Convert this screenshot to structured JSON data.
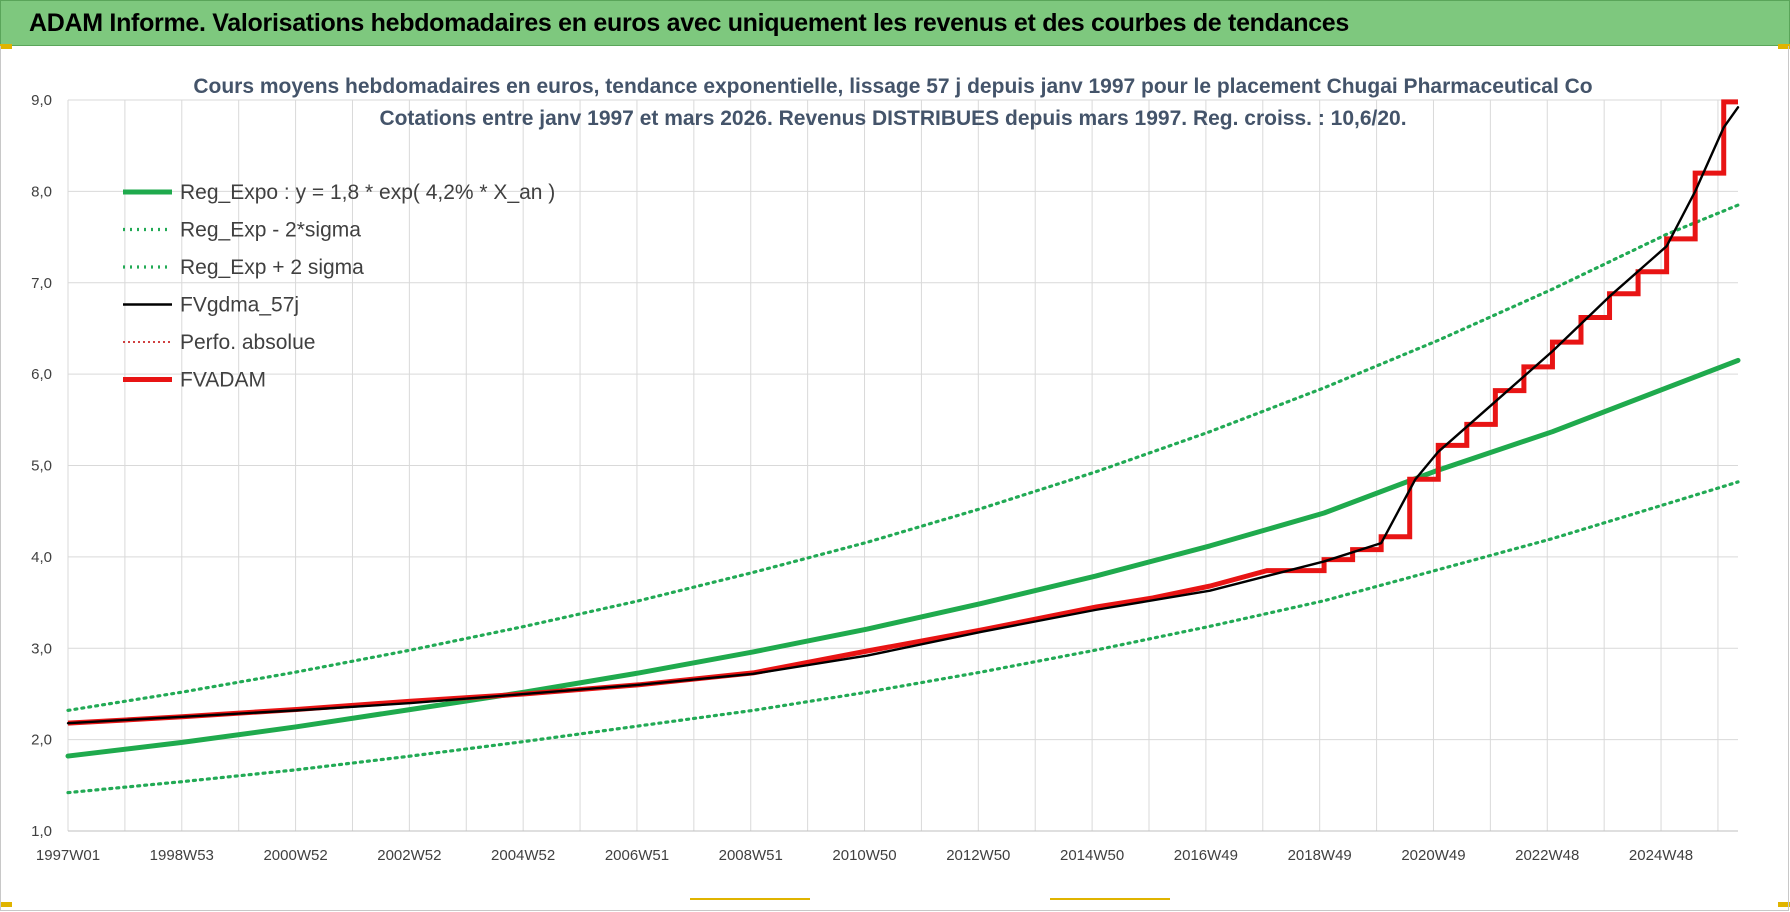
{
  "header": {
    "title": "ADAM Informe. Valorisations hebdomadaires en euros avec uniquement les revenus et des courbes de tendances"
  },
  "colors": {
    "header_bg": "#7ec87e",
    "trend_green": "#1faa4d",
    "sigma_green": "#22aa55",
    "fv_black": "#000000",
    "fvadam_red": "#e81414",
    "perf_red": "#c00000"
  },
  "chart_data": {
    "type": "line",
    "title": "Cours moyens hebdomadaires en euros, tendance exponentielle, lissage 57 j depuis janv 1997  pour le placement Chugai Pharmaceutical Co",
    "subtitle": "Cotations entre janv 1997 et mars 2026. Revenus DISTRIBUES depuis mars 1997. Reg. croiss. : 10,6/20.",
    "xlabel": "",
    "ylabel": "",
    "ylim": [
      1.0,
      9.0
    ],
    "xlim": [
      1997.0,
      2026.25
    ],
    "y_ticks": [
      "1,0",
      "2,0",
      "3,0",
      "4,0",
      "5,0",
      "6,0",
      "7,0",
      "8,0",
      "9,0"
    ],
    "x_tick_labels": [
      "1997W01",
      "1998W53",
      "2000W52",
      "2002W52",
      "2004W52",
      "2006W51",
      "2008W51",
      "2010W50",
      "2012W50",
      "2014W50",
      "2016W49",
      "2018W49",
      "2020W49",
      "2022W48",
      "2024W48"
    ],
    "grid": true,
    "legend_position": "top-left",
    "legend": [
      {
        "name": "Reg_Expo : y = 1,8 * exp( 4,2% *  X_an )",
        "style": "solid-thick",
        "color": "#1faa4d"
      },
      {
        "name": "Reg_Exp - 2*sigma",
        "style": "dotted",
        "color": "#22aa55"
      },
      {
        "name": "Reg_Exp + 2 sigma",
        "style": "dotted",
        "color": "#22aa55"
      },
      {
        "name": "FVgdma_57j",
        "style": "solid",
        "color": "#000000"
      },
      {
        "name": "Perfo. absolue",
        "style": "dotted-thin",
        "color": "#c00000"
      },
      {
        "name": "FVADAM",
        "style": "solid-thick",
        "color": "#e81414"
      }
    ],
    "series": [
      {
        "name": "Reg_Expo : y = 1,8 * exp( 4,2% *  X_an )",
        "x": [
          1997.0,
          1999.0,
          2001.0,
          2003.0,
          2005.0,
          2007.0,
          2009.0,
          2011.0,
          2013.0,
          2015.0,
          2017.0,
          2019.0,
          2021.0,
          2023.0,
          2025.0,
          2026.25
        ],
        "values": [
          1.82,
          1.97,
          2.14,
          2.33,
          2.52,
          2.73,
          2.96,
          3.21,
          3.49,
          3.79,
          4.12,
          4.48,
          4.95,
          5.37,
          5.85,
          6.15
        ]
      },
      {
        "name": "Reg_Exp - 2*sigma",
        "x": [
          1997.0,
          1999.0,
          2001.0,
          2003.0,
          2005.0,
          2007.0,
          2009.0,
          2011.0,
          2013.0,
          2015.0,
          2017.0,
          2019.0,
          2021.0,
          2023.0,
          2025.0,
          2026.25
        ],
        "values": [
          1.42,
          1.54,
          1.67,
          1.82,
          1.98,
          2.15,
          2.32,
          2.52,
          2.74,
          2.98,
          3.24,
          3.52,
          3.86,
          4.2,
          4.58,
          4.82
        ]
      },
      {
        "name": "Reg_Exp + 2 sigma",
        "x": [
          1997.0,
          1999.0,
          2001.0,
          2003.0,
          2005.0,
          2007.0,
          2009.0,
          2011.0,
          2013.0,
          2015.0,
          2017.0,
          2019.0,
          2021.0,
          2023.0,
          2025.0,
          2026.25
        ],
        "values": [
          2.32,
          2.52,
          2.74,
          2.98,
          3.24,
          3.52,
          3.83,
          4.16,
          4.53,
          4.93,
          5.37,
          5.85,
          6.37,
          6.93,
          7.53,
          7.85
        ]
      },
      {
        "name": "FVgdma_57j",
        "x": [
          1997.0,
          1999.0,
          2001.0,
          2003.0,
          2005.0,
          2007.0,
          2009.0,
          2011.0,
          2013.0,
          2015.0,
          2017.0,
          2019.0,
          2020.0,
          2020.6,
          2021.0,
          2022.0,
          2023.0,
          2024.0,
          2025.0,
          2025.5,
          2026.0,
          2026.25
        ],
        "values": [
          2.18,
          2.25,
          2.32,
          2.4,
          2.5,
          2.6,
          2.72,
          2.92,
          3.18,
          3.42,
          3.63,
          3.95,
          4.15,
          4.85,
          5.15,
          5.7,
          6.25,
          6.85,
          7.4,
          8.0,
          8.7,
          8.92
        ]
      },
      {
        "name": "FVADAM",
        "x": [
          1997.0,
          1999.0,
          2001.0,
          2003.0,
          2005.0,
          2007.0,
          2009.0,
          2011.0,
          2013.0,
          2015.0,
          2016.0,
          2017.0,
          2018.0,
          2019.0,
          2019.5,
          2020.0,
          2020.5,
          2021.0,
          2021.5,
          2022.0,
          2022.5,
          2023.0,
          2023.5,
          2024.0,
          2024.5,
          2025.0,
          2025.5,
          2026.0,
          2026.25
        ],
        "values": [
          2.18,
          2.25,
          2.33,
          2.42,
          2.5,
          2.6,
          2.73,
          2.97,
          3.2,
          3.45,
          3.55,
          3.68,
          3.85,
          3.97,
          4.08,
          4.22,
          4.85,
          5.22,
          5.45,
          5.82,
          6.08,
          6.35,
          6.62,
          6.88,
          7.12,
          7.48,
          8.2,
          8.98,
          8.98
        ]
      }
    ]
  }
}
